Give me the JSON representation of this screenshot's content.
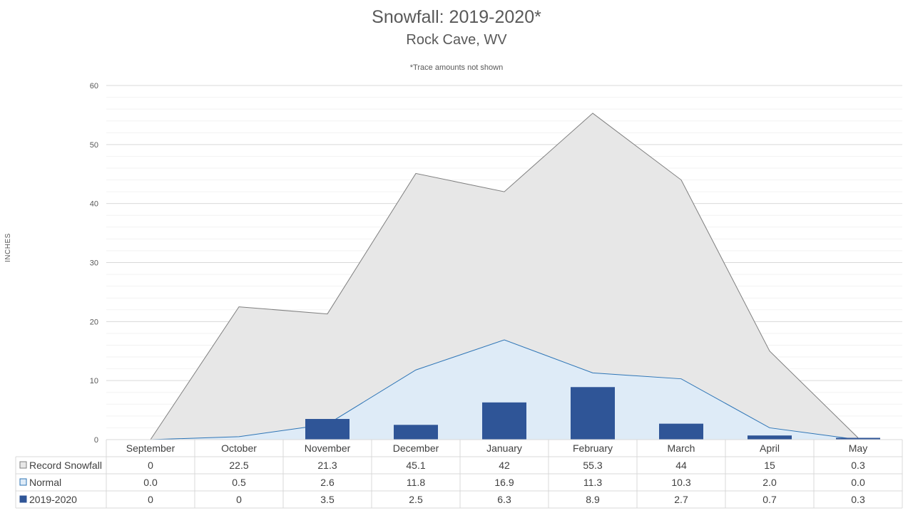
{
  "chart_data": {
    "type": "area",
    "title": "Snowfall: 2019-2020*",
    "subtitle": "Rock Cave, WV",
    "note": "*Trace amounts not shown",
    "ylabel": "INCHES",
    "xlabel": "",
    "ylim": [
      0,
      60
    ],
    "yticks": [
      0,
      10,
      20,
      30,
      40,
      50,
      60
    ],
    "grid": true,
    "legend": "data-table",
    "categories": [
      "September",
      "October",
      "November",
      "December",
      "January",
      "February",
      "March",
      "April",
      "May"
    ],
    "series": [
      {
        "name": "Record Snowfall",
        "render": "area",
        "color": "#e7e7e7",
        "stroke": "#7f7f7f",
        "values": [
          0,
          22.5,
          21.3,
          45.1,
          42,
          55.3,
          44,
          15,
          0.3
        ],
        "labels": [
          "0",
          "22.5",
          "21.3",
          "45.1",
          "42",
          "55.3",
          "44",
          "15",
          "0.3"
        ]
      },
      {
        "name": "Normal",
        "render": "area",
        "color": "#deebf7",
        "stroke": "#2e75b6",
        "values": [
          0.0,
          0.5,
          2.6,
          11.8,
          16.9,
          11.3,
          10.3,
          2.0,
          0.0
        ],
        "labels": [
          "0.0",
          "0.5",
          "2.6",
          "11.8",
          "16.9",
          "11.3",
          "10.3",
          "2.0",
          "0.0"
        ]
      },
      {
        "name": "2019-2020",
        "render": "bar",
        "color": "#2f5597",
        "stroke": "#2f5597",
        "values": [
          0,
          0,
          3.5,
          2.5,
          6.3,
          8.9,
          2.7,
          0.7,
          0.3
        ],
        "labels": [
          "0",
          "0",
          "3.5",
          "2.5",
          "6.3",
          "8.9",
          "2.7",
          "0.7",
          "0.3"
        ]
      }
    ]
  }
}
